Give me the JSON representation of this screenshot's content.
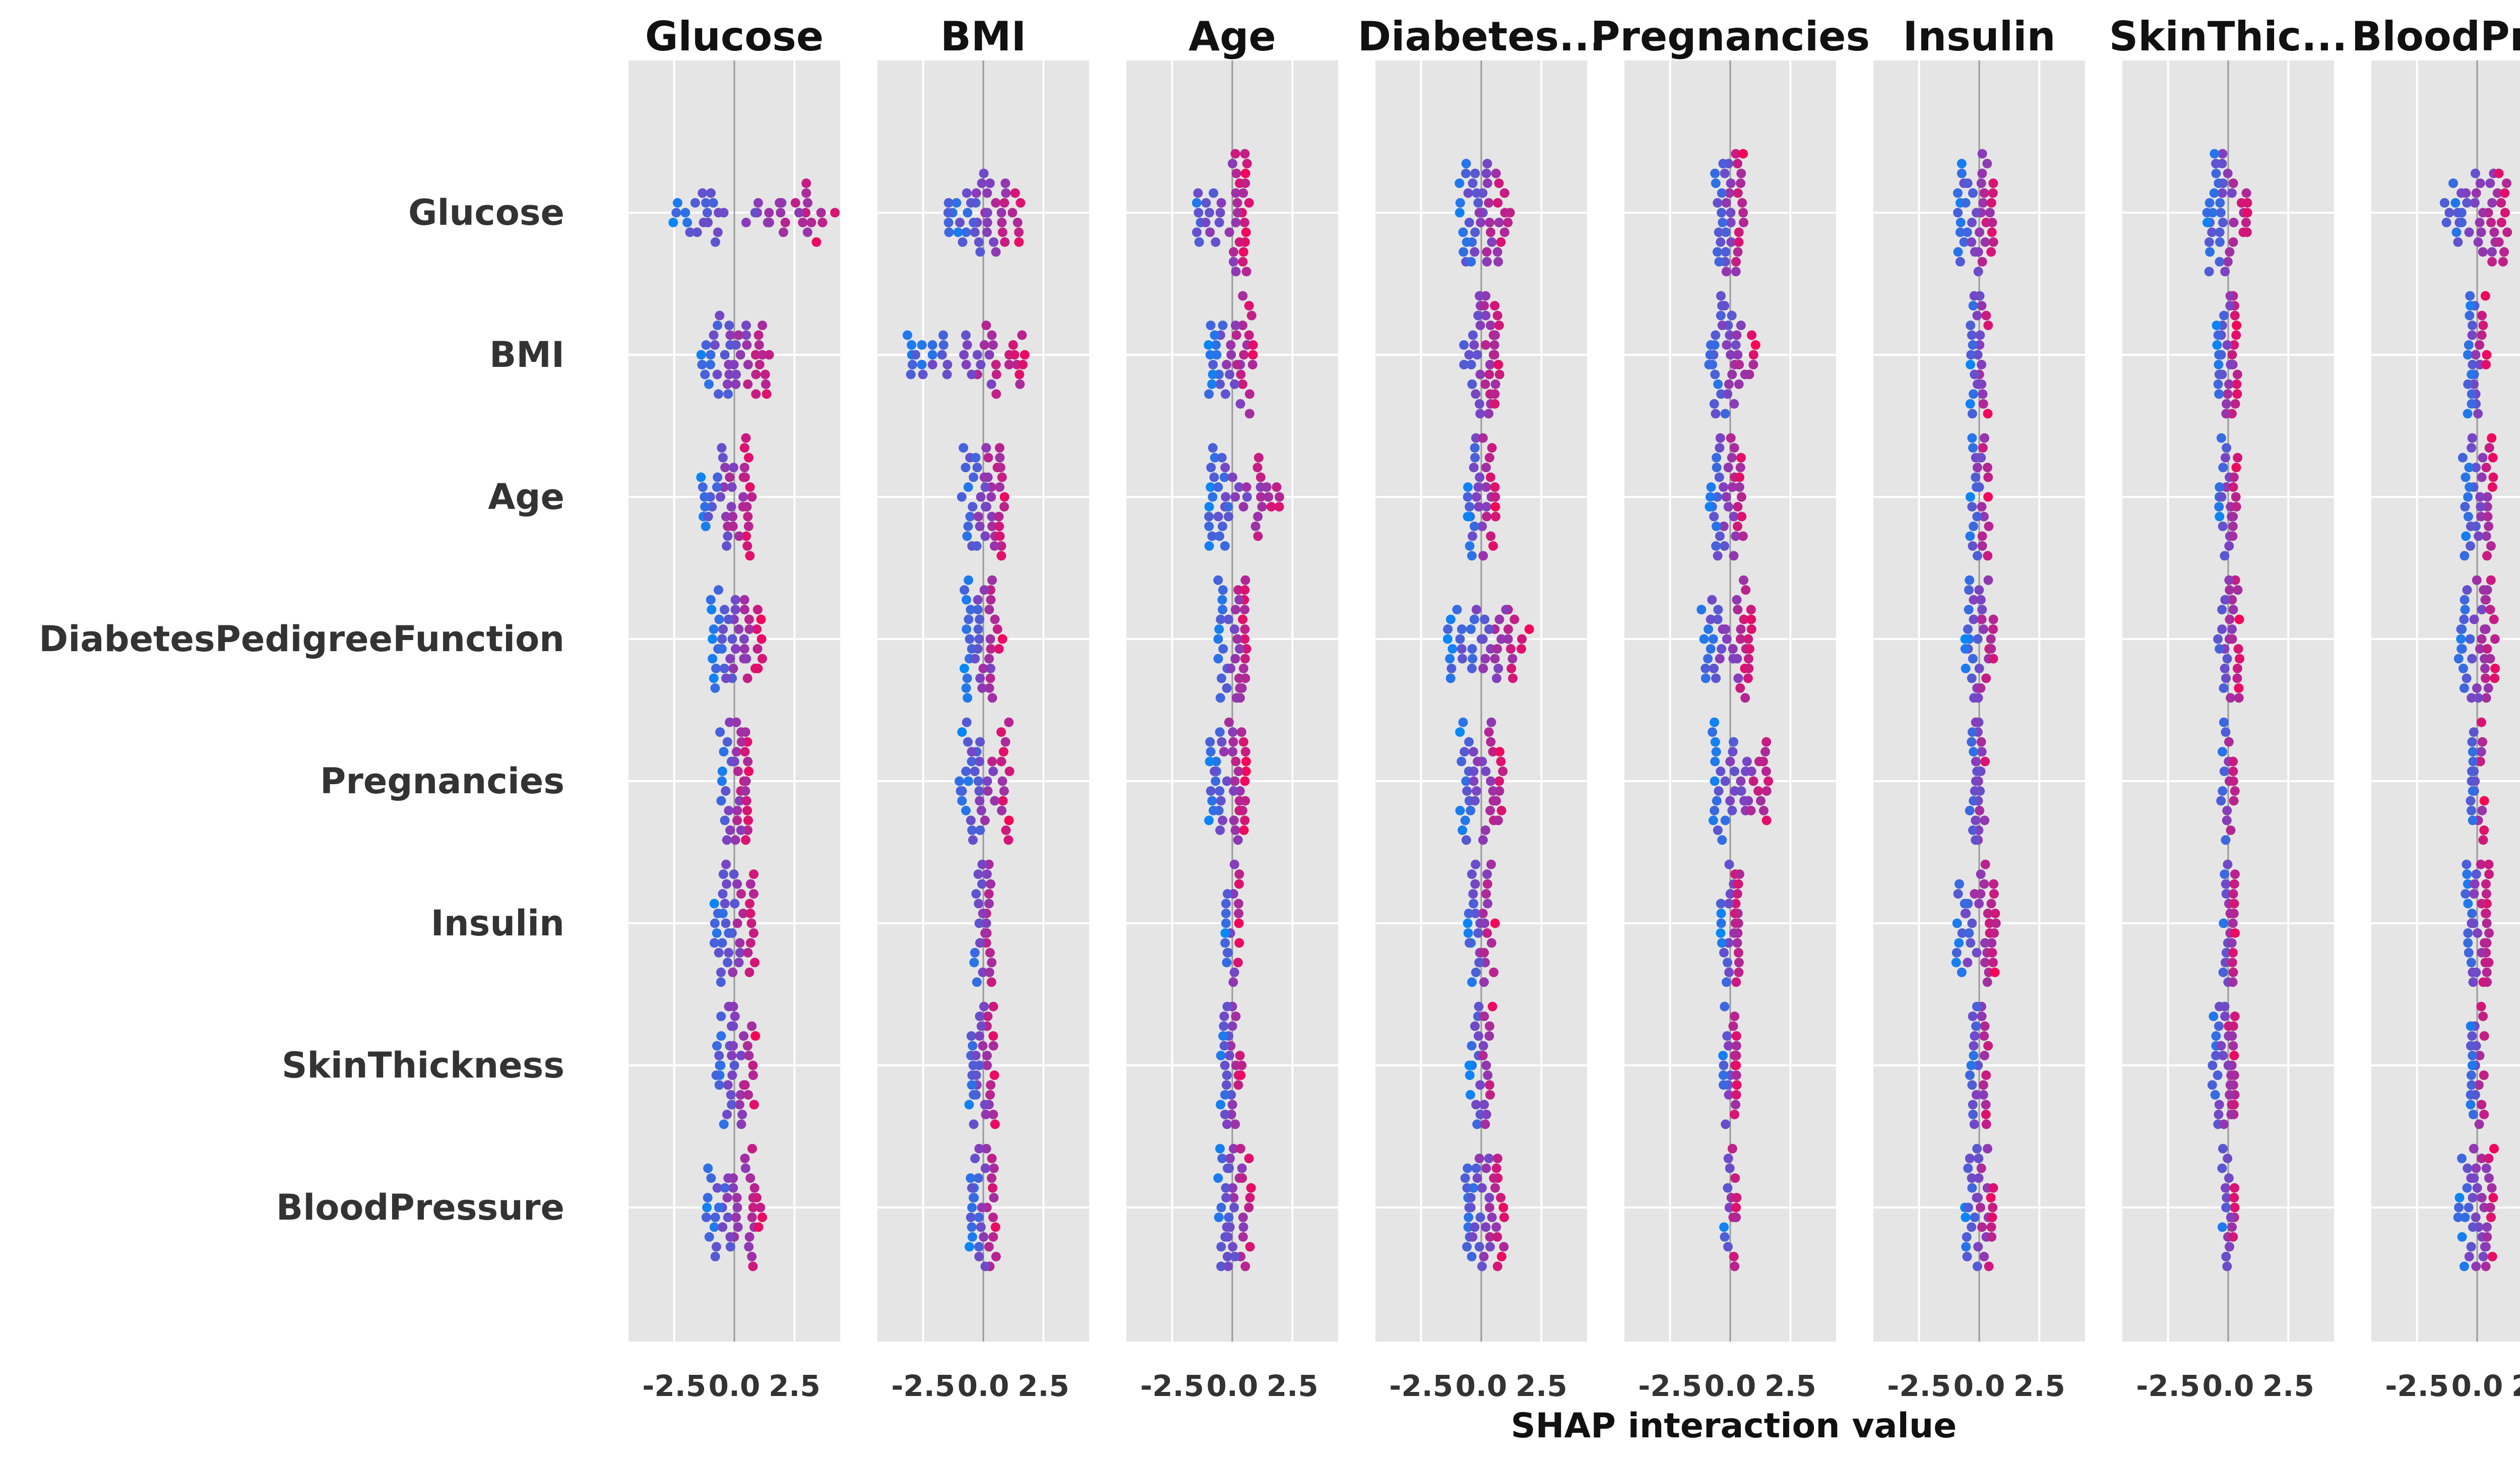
{
  "chart_data": {
    "type": "scatter",
    "subtype": "shap-interaction-summary-beeswarm",
    "columns": [
      "Glucose",
      "BMI",
      "Age",
      "Diabetes...",
      "Pregnancies",
      "Insulin",
      "SkinThic...",
      "BloodPre..."
    ],
    "rows": [
      "Glucose",
      "BMI",
      "Age",
      "DiabetesPedigreeFunction",
      "Pregnancies",
      "Insulin",
      "SkinThickness",
      "BloodPressure"
    ],
    "xlabel": "SHAP interaction value",
    "xticks": [
      -2.5,
      0.0,
      2.5
    ],
    "xtick_labels": [
      "-2.5",
      "0.0",
      "2.5"
    ],
    "xlim": [
      -4.4,
      4.4
    ],
    "grid": true,
    "colors": {
      "low": "#008bfb",
      "high": "#ff0052",
      "panel_bg": "#e5e5e5",
      "grid": "#ffffff",
      "zero_line": "#999999"
    },
    "spread": [
      [
        [
          -2.7,
          4.2
        ],
        [
          -1.5,
          1.6
        ],
        [
          -1.9,
          0.7
        ],
        [
          -1.0,
          1.2
        ],
        [
          -0.7,
          0.6
        ],
        [
          -0.9,
          0.7
        ],
        [
          -0.9,
          1.0
        ],
        [
          -1.4,
          1.3
        ]
      ],
      [
        [
          -1.4,
          1.6
        ],
        [
          -3.2,
          1.9
        ],
        [
          -1.0,
          0.9
        ],
        [
          -0.8,
          0.8
        ],
        [
          -0.9,
          1.1
        ],
        [
          -0.4,
          0.4
        ],
        [
          -0.5,
          0.4
        ],
        [
          -0.4,
          0.4
        ]
      ],
      [
        [
          -1.5,
          0.8
        ],
        [
          -0.9,
          0.9
        ],
        [
          -1.0,
          2.0
        ],
        [
          -0.6,
          0.6
        ],
        [
          -0.9,
          0.6
        ],
        [
          -0.4,
          0.4
        ],
        [
          -0.4,
          0.4
        ],
        [
          -0.6,
          0.7
        ]
      ],
      [
        [
          -1.0,
          1.2
        ],
        [
          -0.8,
          0.8
        ],
        [
          -0.6,
          0.6
        ],
        [
          -1.4,
          2.0
        ],
        [
          -1.2,
          0.9
        ],
        [
          -0.6,
          0.6
        ],
        [
          -0.5,
          0.5
        ],
        [
          -0.8,
          0.8
        ]
      ],
      [
        [
          -0.6,
          0.6
        ],
        [
          -1.0,
          1.1
        ],
        [
          -1.0,
          0.6
        ],
        [
          -0.9,
          0.9
        ],
        [
          -0.8,
          1.6
        ],
        [
          -0.4,
          0.4
        ],
        [
          -0.3,
          0.3
        ],
        [
          -0.3,
          0.3
        ]
      ],
      [
        [
          -0.9,
          0.9
        ],
        [
          -0.4,
          0.4
        ],
        [
          -0.3,
          0.3
        ],
        [
          -0.6,
          0.6
        ],
        [
          -0.4,
          0.4
        ],
        [
          -1.0,
          0.7
        ],
        [
          -0.3,
          0.3
        ],
        [
          -0.5,
          0.5
        ]
      ],
      [
        [
          -0.8,
          0.9
        ],
        [
          -0.6,
          0.5
        ],
        [
          -0.5,
          0.4
        ],
        [
          -0.5,
          0.5
        ],
        [
          -0.3,
          0.3
        ],
        [
          -0.4,
          0.4
        ],
        [
          -0.7,
          0.3
        ],
        [
          -0.3,
          0.3
        ]
      ],
      [
        [
          -1.2,
          1.2
        ],
        [
          -0.6,
          0.6
        ],
        [
          -0.6,
          0.8
        ],
        [
          -0.8,
          1.0
        ],
        [
          -0.3,
          0.3
        ],
        [
          -0.6,
          0.6
        ],
        [
          -0.3,
          0.3
        ],
        [
          -0.8,
          0.8
        ]
      ]
    ]
  }
}
